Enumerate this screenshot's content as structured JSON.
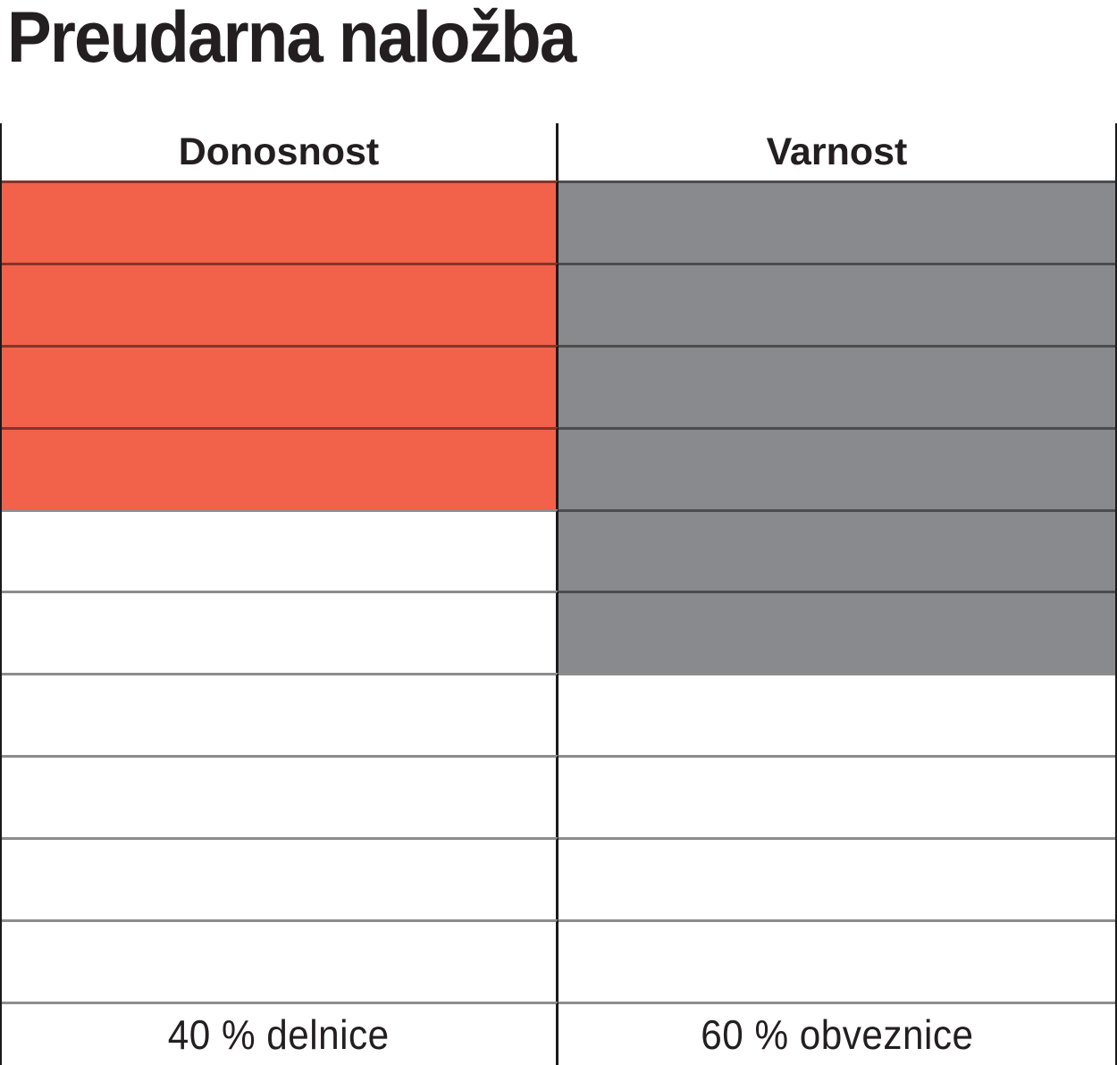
{
  "title": "Preudarna naložba",
  "chart_data": {
    "type": "table",
    "title": "Preudarna naložba",
    "description_layout": "two-column cell grid, filled cells counted from top",
    "total_rows": 10,
    "colors": {
      "stocks_fill": "#F2614A",
      "bonds_fill": "#898A8D",
      "grid_line": "rgba(0,0,0,0.45)",
      "frame_line": "#1a1a1a",
      "text": "#231f20"
    },
    "columns": [
      {
        "header": "Donosnost",
        "footer": "40 % delnice",
        "percent": 40,
        "filled_cells": 4,
        "total_cells": 10,
        "fill_color": "#F2614A"
      },
      {
        "header": "Varnost",
        "footer": "60 % obveznice",
        "percent": 60,
        "filled_cells": 6,
        "total_cells": 10,
        "fill_color": "#898A8D"
      }
    ]
  }
}
